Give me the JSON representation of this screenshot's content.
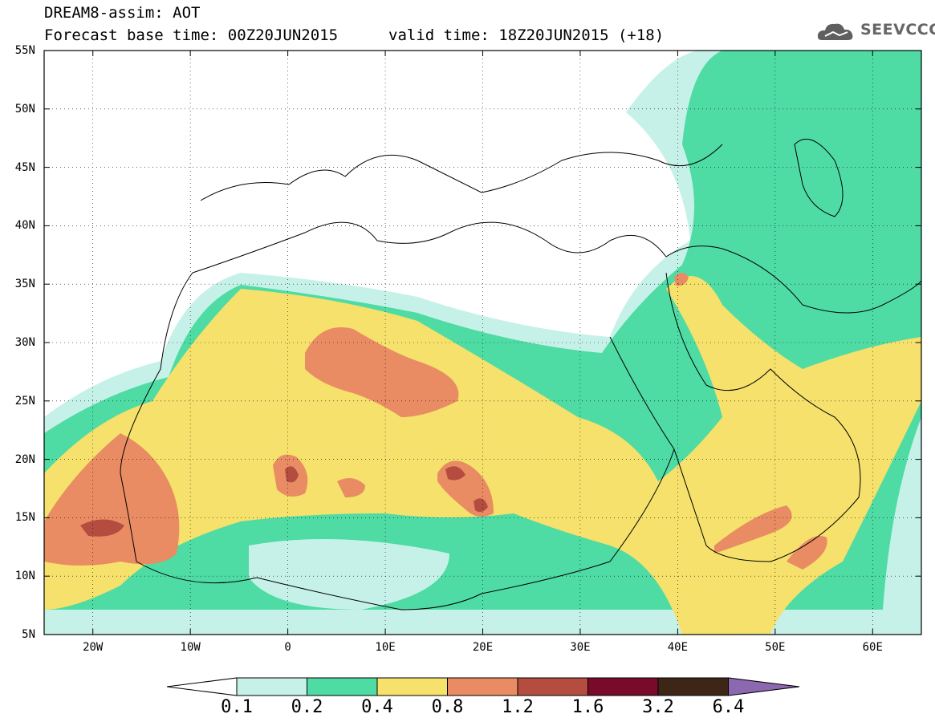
{
  "header": {
    "title": "DREAM8-assim: AOT",
    "base_time": "Forecast base time: 00Z20JUN2015",
    "valid_time": "valid time: 18Z20JUN2015 (+18)"
  },
  "logo": {
    "text": "SEEVCCC",
    "icon": "cloud-icon"
  },
  "map": {
    "projection": "lat-lon",
    "lon_range": [
      -25,
      65
    ],
    "lat_range": [
      5,
      55
    ],
    "lat_ticks": [
      "55N",
      "50N",
      "45N",
      "40N",
      "35N",
      "30N",
      "25N",
      "20N",
      "15N",
      "10N",
      "5N"
    ],
    "lat_values": [
      55,
      50,
      45,
      40,
      35,
      30,
      25,
      20,
      15,
      10,
      5
    ],
    "lon_ticks": [
      "20W",
      "10W",
      "0",
      "10E",
      "20E",
      "30E",
      "40E",
      "50E",
      "60E"
    ],
    "lon_values": [
      -20,
      -10,
      0,
      10,
      20,
      30,
      40,
      50,
      60
    ],
    "grid": "dotted",
    "coastline_color": "#000000"
  },
  "colorbar": {
    "labels": [
      "0.1",
      "0.2",
      "0.4",
      "0.8",
      "1.2",
      "1.6",
      "3.2",
      "6.4"
    ],
    "colors": [
      "#ffffff",
      "#c6f1e8",
      "#4fdba4",
      "#f5e16c",
      "#e98c63",
      "#b44c3f",
      "#7a0a2a",
      "#3e2616",
      "#8c68b0"
    ]
  }
}
